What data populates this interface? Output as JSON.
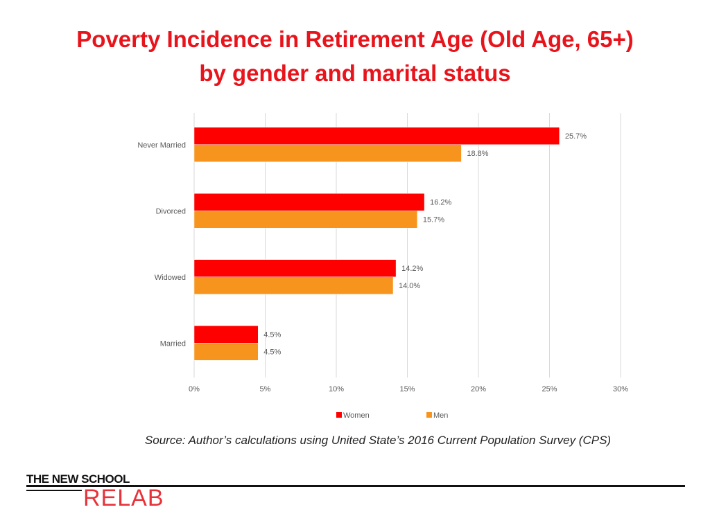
{
  "title": {
    "line1": "Poverty Incidence in Retirement Age (Old Age, 65+)",
    "line2": "by gender and marital status"
  },
  "source": "Source: Author’s calculations using United State’s 2016 Current Population Survey (CPS)",
  "logo": {
    "top": "THE NEW SCHOOL",
    "bottom": "RELAB"
  },
  "colors": {
    "title": "#e8141c",
    "women": "#ff0000",
    "men": "#f7941d",
    "grid": "#d9d9d9",
    "label": "#595959"
  },
  "chart_data": {
    "type": "bar",
    "orientation": "horizontal",
    "categories": [
      "Never Married",
      "Divorced",
      "Widowed",
      "Married"
    ],
    "series": [
      {
        "name": "Women",
        "values": [
          25.7,
          16.2,
          14.2,
          4.5
        ],
        "labels": [
          "25.7%",
          "16.2%",
          "14.2%",
          "4.5%"
        ]
      },
      {
        "name": "Men",
        "values": [
          18.8,
          15.7,
          14.0,
          4.5
        ],
        "labels": [
          "18.8%",
          "15.7%",
          "14.0%",
          "4.5%"
        ]
      }
    ],
    "xlim": [
      0,
      30
    ],
    "xticks": [
      "0%",
      "5%",
      "10%",
      "15%",
      "20%",
      "25%",
      "30%"
    ],
    "grid": true,
    "legend": "bottom"
  }
}
